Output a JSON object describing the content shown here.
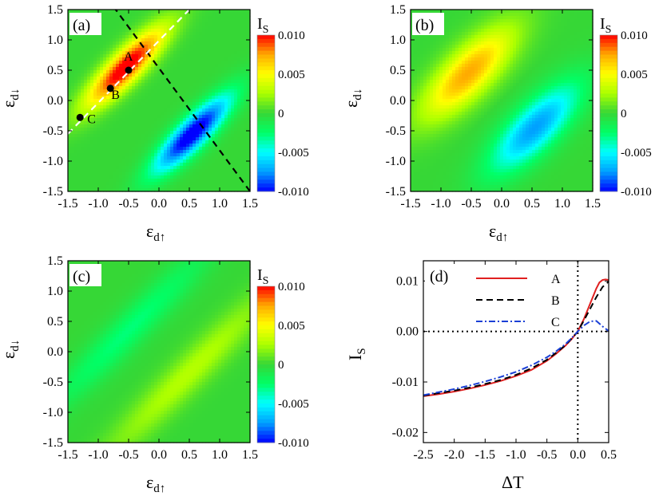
{
  "figure": {
    "colorbar": {
      "title_main": "I",
      "title_sub": "S",
      "tick_labels": [
        "0.010",
        "0.005",
        "0",
        "-0.005",
        "-0.010"
      ],
      "tick_values": [
        0.01,
        0.005,
        0,
        -0.005,
        -0.01
      ],
      "range": [
        -0.01,
        0.01
      ],
      "colors": [
        "#0000ff",
        "#00a0ff",
        "#00ffff",
        "#00ff66",
        "#36d736",
        "#aaff00",
        "#ffff00",
        "#ffaa00",
        "#ff0000"
      ]
    },
    "map_axis": {
      "x_main": "ε",
      "x_sub": "d↑",
      "y_main": "ε",
      "y_sub": "d↓",
      "tick_labels": [
        "-1.5",
        "-1.0",
        "-0.5",
        "0.0",
        "0.5",
        "1.0",
        "1.5"
      ],
      "tick_values": [
        -1.5,
        -1.0,
        -0.5,
        0.0,
        0.5,
        1.0,
        1.5
      ]
    }
  },
  "chart_data": [
    {
      "type": "heatmap",
      "panel_label": "(a)",
      "xlim": [
        -1.5,
        1.5
      ],
      "ylim": [
        -1.5,
        1.5
      ],
      "blobs": [
        {
          "x": -0.55,
          "y": 0.55,
          "peak": 0.011,
          "width_along": 0.62,
          "width_across": 0.17
        },
        {
          "x": 0.55,
          "y": -0.55,
          "peak": -0.011,
          "width_along": 0.62,
          "width_across": 0.17
        }
      ],
      "guide_lines": [
        {
          "color": "#000000",
          "from": [
            -0.75,
            1.55
          ],
          "to": [
            1.5,
            -1.5
          ]
        },
        {
          "color": "#ffffff",
          "from": [
            -1.5,
            -0.55
          ],
          "to": [
            0.55,
            1.55
          ]
        }
      ],
      "points": [
        {
          "label": "A",
          "x": -0.5,
          "y": 0.5
        },
        {
          "label": "B",
          "x": -0.8,
          "y": 0.2
        },
        {
          "label": "C",
          "x": -1.3,
          "y": -0.28
        }
      ]
    },
    {
      "type": "heatmap",
      "panel_label": "(b)",
      "xlim": [
        -1.5,
        1.5
      ],
      "ylim": [
        -1.5,
        1.5
      ],
      "blobs": [
        {
          "x": -0.55,
          "y": 0.45,
          "peak": 0.0075,
          "width_along": 0.7,
          "width_across": 0.26
        },
        {
          "x": 0.55,
          "y": -0.45,
          "peak": -0.0075,
          "width_along": 0.7,
          "width_across": 0.26
        }
      ],
      "guide_lines": [],
      "points": []
    },
    {
      "type": "heatmap",
      "panel_label": "(c)",
      "xlim": [
        -1.5,
        1.5
      ],
      "ylim": [
        -1.5,
        1.5
      ],
      "blobs": [
        {
          "x": -0.5,
          "y": 0.35,
          "peak": -0.0028,
          "width_along": 1.4,
          "width_across": 0.2
        },
        {
          "x": 0.5,
          "y": -0.35,
          "peak": 0.0028,
          "width_along": 1.4,
          "width_across": 0.2
        }
      ],
      "guide_lines": [],
      "points": []
    },
    {
      "type": "line",
      "panel_label": "(d)",
      "xlabel": "ΔT",
      "ylabel_main": "I",
      "ylabel_sub": "S",
      "xlim": [
        -2.5,
        0.5
      ],
      "ylim": [
        -0.022,
        0.014
      ],
      "xticks": [
        -2.5,
        -2.0,
        -1.5,
        -1.0,
        -0.5,
        0.0,
        0.5
      ],
      "xtick_labels": [
        "-2.5",
        "-2.0",
        "-1.5",
        "-1.0",
        "-0.5",
        "0.0",
        "0.5"
      ],
      "yticks": [
        0.01,
        0.0,
        -0.01,
        -0.02
      ],
      "ytick_labels": [
        "0.01",
        "0.00",
        "-0.01",
        "-0.02"
      ],
      "series": [
        {
          "name": "A",
          "color": "#e02020",
          "dash": "",
          "x": [
            -2.5,
            -2.25,
            -2.0,
            -1.75,
            -1.5,
            -1.25,
            -1.0,
            -0.75,
            -0.5,
            -0.35,
            -0.2,
            -0.1,
            0.0,
            0.1,
            0.2,
            0.3,
            0.35,
            0.4,
            0.45,
            0.5
          ],
          "y": [
            -0.0128,
            -0.0124,
            -0.0119,
            -0.0113,
            -0.0106,
            -0.0098,
            -0.0088,
            -0.0076,
            -0.0058,
            -0.0044,
            -0.0028,
            -0.0015,
            0.0,
            0.0025,
            0.0055,
            0.0085,
            0.0097,
            0.0102,
            0.0103,
            0.0102
          ]
        },
        {
          "name": "B",
          "color": "#000000",
          "dash": "8,5",
          "x": [
            -2.5,
            -2.25,
            -2.0,
            -1.75,
            -1.5,
            -1.25,
            -1.0,
            -0.75,
            -0.5,
            -0.35,
            -0.2,
            -0.1,
            0.0,
            0.1,
            0.2,
            0.3,
            0.4,
            0.5
          ],
          "y": [
            -0.0127,
            -0.0122,
            -0.0117,
            -0.0111,
            -0.0104,
            -0.0096,
            -0.0086,
            -0.0073,
            -0.0056,
            -0.0042,
            -0.0027,
            -0.0014,
            0.0,
            0.0022,
            0.0045,
            0.0068,
            0.0088,
            0.0099
          ]
        },
        {
          "name": "C",
          "color": "#1a3fd6",
          "dash": "8,3,2,3",
          "x": [
            -2.5,
            -2.25,
            -2.0,
            -1.75,
            -1.5,
            -1.25,
            -1.0,
            -0.75,
            -0.5,
            -0.35,
            -0.2,
            -0.1,
            0.0,
            0.1,
            0.2,
            0.3,
            0.4,
            0.5
          ],
          "y": [
            -0.0126,
            -0.012,
            -0.0114,
            -0.0107,
            -0.0099,
            -0.009,
            -0.008,
            -0.0067,
            -0.0051,
            -0.0039,
            -0.0025,
            -0.0013,
            0.0,
            0.0012,
            0.002,
            0.0021,
            0.001,
            0.0001
          ]
        }
      ],
      "reference_lines": [
        {
          "axis": "y",
          "value": 0.0
        },
        {
          "axis": "x",
          "value": 0.0
        }
      ],
      "legend": "top-right"
    }
  ]
}
